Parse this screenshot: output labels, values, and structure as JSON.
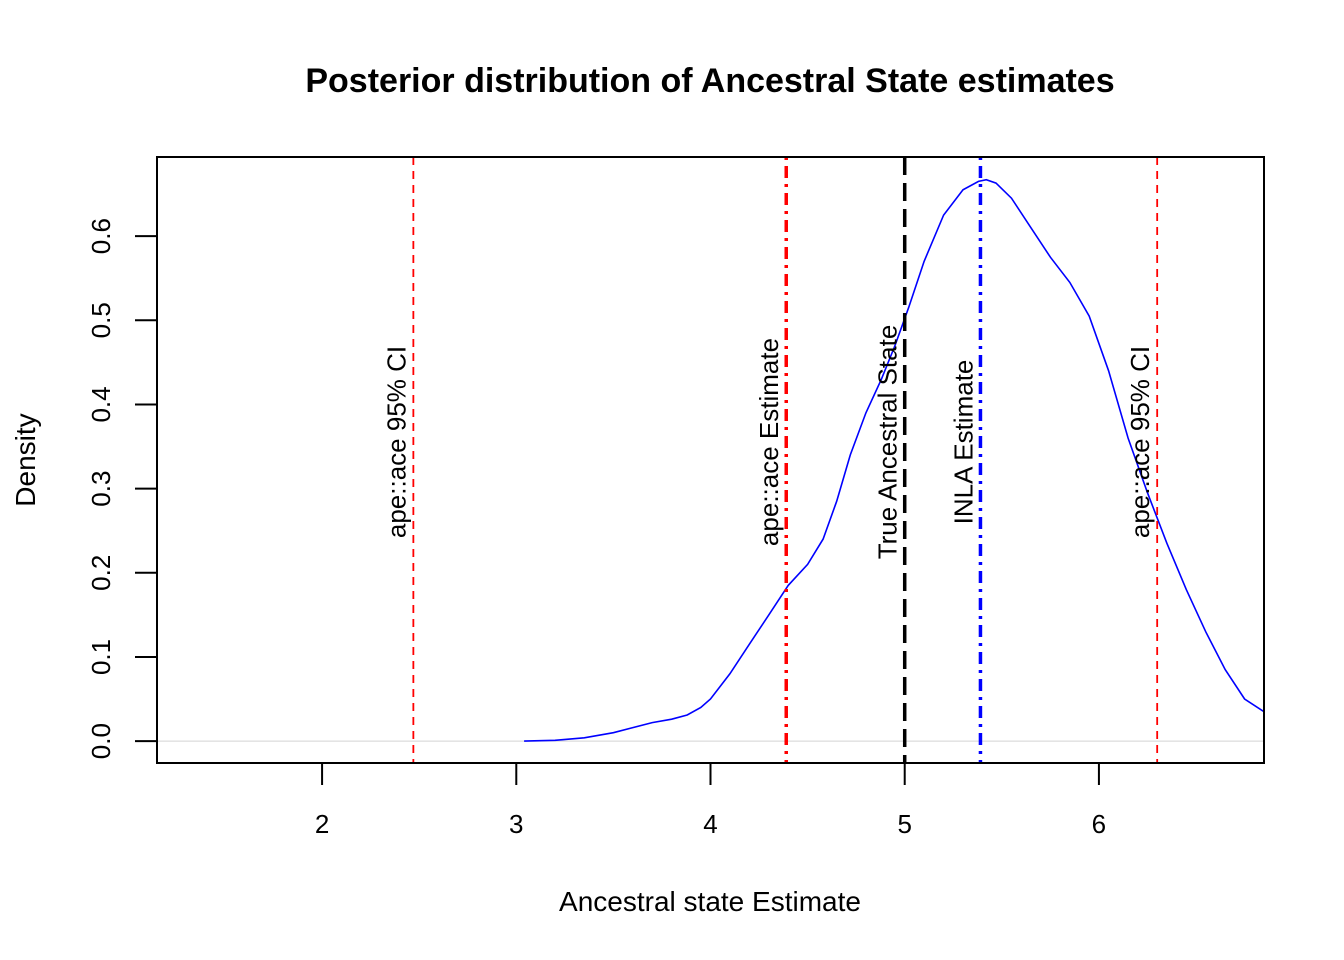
{
  "chart_data": {
    "type": "line",
    "title": "Posterior distribution of Ancestral State estimates",
    "xlabel": "Ancestral state Estimate",
    "ylabel": "Density",
    "xlim": [
      1.15,
      6.85
    ],
    "ylim": [
      -0.026,
      0.694
    ],
    "x_ticks": [
      2,
      3,
      4,
      5,
      6
    ],
    "y_ticks": [
      0.0,
      0.1,
      0.2,
      0.3,
      0.4,
      0.5,
      0.6
    ],
    "x_tick_labels": [
      "2",
      "3",
      "4",
      "5",
      "6"
    ],
    "y_tick_labels": [
      "0.0",
      "0.1",
      "0.2",
      "0.3",
      "0.4",
      "0.5",
      "0.6"
    ],
    "grid": false,
    "baseline": 0,
    "series": [
      {
        "color": "#0000ff",
        "x": [
          3.04,
          3.2,
          3.35,
          3.5,
          3.6,
          3.7,
          3.8,
          3.88,
          3.95,
          4.0,
          4.1,
          4.2,
          4.3,
          4.4,
          4.5,
          4.58,
          4.65,
          4.72,
          4.8,
          4.88,
          4.95,
          5.02,
          5.1,
          5.2,
          5.3,
          5.38,
          5.42,
          5.47,
          5.55,
          5.65,
          5.75,
          5.85,
          5.95,
          6.05,
          6.15,
          6.25,
          6.35,
          6.45,
          6.55,
          6.65,
          6.75,
          6.85
        ],
        "y": [
          0.0,
          0.001,
          0.004,
          0.01,
          0.016,
          0.022,
          0.026,
          0.031,
          0.04,
          0.05,
          0.08,
          0.115,
          0.15,
          0.185,
          0.21,
          0.24,
          0.285,
          0.34,
          0.39,
          0.43,
          0.47,
          0.515,
          0.57,
          0.625,
          0.655,
          0.665,
          0.667,
          0.663,
          0.645,
          0.61,
          0.575,
          0.545,
          0.505,
          0.44,
          0.36,
          0.295,
          0.235,
          0.18,
          0.13,
          0.085,
          0.05,
          0.035
        ]
      }
    ],
    "reference_lines": [
      {
        "x": 2.47,
        "label": "ape::ace 95% CI",
        "color": "#ff0000",
        "style": "dashed",
        "weight": "thin"
      },
      {
        "x": 4.39,
        "label": "ape::ace Estimate",
        "color": "#ff0000",
        "style": "dotdash",
        "weight": "thick"
      },
      {
        "x": 5.0,
        "label": "True Ancestral State",
        "color": "#000000",
        "style": "longdash",
        "weight": "thick"
      },
      {
        "x": 5.39,
        "label": "INLA Estimate",
        "color": "#0000ff",
        "style": "dotdash",
        "weight": "thick"
      },
      {
        "x": 6.3,
        "label": "ape::ace 95% CI",
        "color": "#ff0000",
        "style": "dashed",
        "weight": "thin"
      }
    ]
  }
}
